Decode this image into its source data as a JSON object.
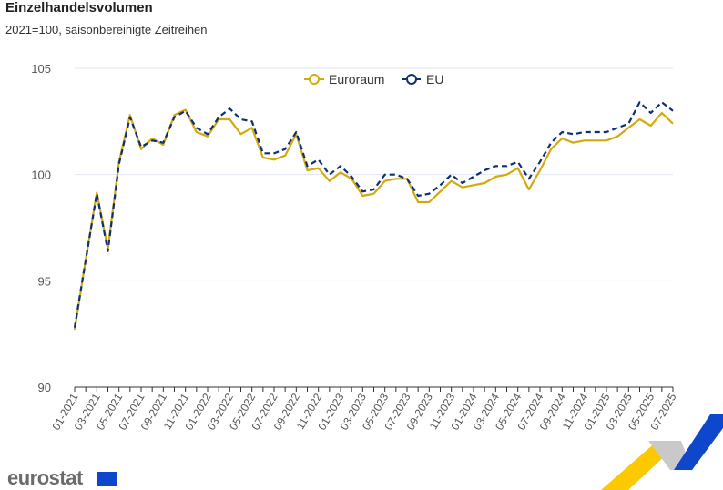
{
  "header": {
    "title": "Einzelhandelsvolumen",
    "subtitle": "2021=100, saisonbereinigte Zeitreihen"
  },
  "branding": {
    "logo_text": "eurostat"
  },
  "chart_data": {
    "type": "line",
    "title": "Einzelhandelsvolumen",
    "subtitle": "2021=100, saisonbereinigte Zeitreihen",
    "xlabel": "",
    "ylabel": "",
    "ylim": [
      90,
      105
    ],
    "yticks": [
      90,
      95,
      100,
      105
    ],
    "grid": true,
    "legend_position": "top-center",
    "x": [
      "01-2021",
      "02-2021",
      "03-2021",
      "04-2021",
      "05-2021",
      "06-2021",
      "07-2021",
      "08-2021",
      "09-2021",
      "10-2021",
      "11-2021",
      "12-2021",
      "01-2022",
      "02-2022",
      "03-2022",
      "04-2022",
      "05-2022",
      "06-2022",
      "07-2022",
      "08-2022",
      "09-2022",
      "10-2022",
      "11-2022",
      "12-2022",
      "01-2023",
      "02-2023",
      "03-2023",
      "04-2023",
      "05-2023",
      "06-2023",
      "07-2023",
      "08-2023",
      "09-2023",
      "10-2023",
      "11-2023",
      "12-2023",
      "01-2024",
      "02-2024",
      "03-2024",
      "04-2024",
      "05-2024",
      "06-2024",
      "07-2024",
      "08-2024",
      "09-2024",
      "10-2024",
      "11-2024",
      "12-2024",
      "01-2025",
      "02-2025",
      "03-2025",
      "04-2025",
      "05-2025",
      "06-2025",
      "07-2025"
    ],
    "series": [
      {
        "name": "Euroraum",
        "color": "#d4a90f",
        "dash": false,
        "values": [
          92.7,
          96.0,
          99.15,
          96.5,
          100.6,
          102.8,
          101.2,
          101.7,
          101.4,
          102.8,
          103.05,
          102.0,
          101.8,
          102.6,
          102.6,
          101.9,
          102.2,
          100.8,
          100.7,
          100.9,
          101.9,
          100.2,
          100.3,
          99.7,
          100.1,
          99.8,
          99.0,
          99.1,
          99.7,
          99.8,
          99.8,
          98.7,
          98.7,
          99.2,
          99.7,
          99.4,
          99.5,
          99.6,
          99.9,
          100.0,
          100.3,
          99.3,
          100.2,
          101.2,
          101.7,
          101.5,
          101.6,
          101.6,
          101.6,
          101.8,
          102.2,
          102.6,
          102.3,
          102.9,
          102.4
        ]
      },
      {
        "name": "EU",
        "color": "#0e2f74",
        "dash": true,
        "values": [
          92.8,
          96.0,
          99.1,
          96.4,
          100.5,
          102.7,
          101.3,
          101.6,
          101.5,
          102.7,
          103.0,
          102.2,
          101.9,
          102.7,
          103.1,
          102.6,
          102.5,
          101.0,
          101.0,
          101.2,
          102.0,
          100.4,
          100.7,
          100.0,
          100.4,
          99.9,
          99.2,
          99.3,
          100.0,
          100.0,
          99.8,
          99.0,
          99.1,
          99.5,
          100.0,
          99.6,
          99.9,
          100.2,
          100.4,
          100.4,
          100.6,
          99.8,
          100.6,
          101.5,
          102.0,
          101.9,
          102.0,
          102.0,
          102.0,
          102.2,
          102.4,
          103.4,
          102.9,
          103.4,
          103.0
        ]
      }
    ]
  }
}
